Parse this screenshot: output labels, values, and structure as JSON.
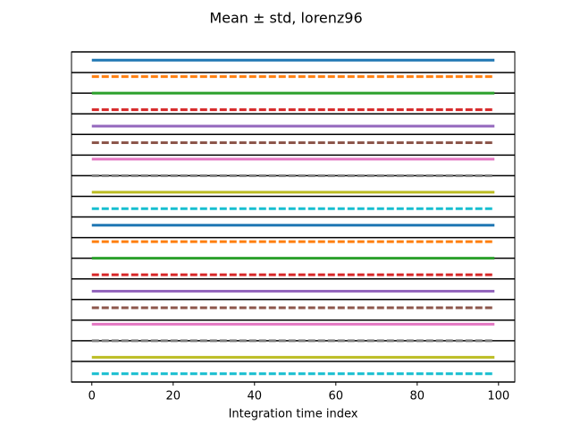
{
  "chart_data": {
    "type": "line",
    "title": "Mean ± std, lorenz96",
    "x_label": "Integration time index",
    "x": [
      0,
      99
    ],
    "xlim": [
      -5,
      104
    ],
    "xticks": [
      0,
      20,
      40,
      60,
      80,
      100
    ],
    "ylim": [
      0,
      40
    ],
    "series": [
      {
        "color": "#1f77b4",
        "values": [
          39,
          39
        ]
      },
      {
        "color": "#ff7f0e",
        "values": [
          37,
          37
        ]
      },
      {
        "color": "#2ca02c",
        "values": [
          35,
          35
        ]
      },
      {
        "color": "#d62728",
        "values": [
          33,
          33
        ]
      },
      {
        "color": "#9467bd",
        "values": [
          31,
          31
        ]
      },
      {
        "color": "#8c564b",
        "values": [
          29,
          29
        ]
      },
      {
        "color": "#e377c2",
        "values": [
          27,
          27
        ]
      },
      {
        "color": "#7f7f7f",
        "values": [
          25,
          25
        ]
      },
      {
        "color": "#bcbd22",
        "values": [
          23,
          23
        ]
      },
      {
        "color": "#17becf",
        "values": [
          21,
          21
        ]
      },
      {
        "color": "#1f77b4",
        "values": [
          19,
          19
        ]
      },
      {
        "color": "#ff7f0e",
        "values": [
          17,
          17
        ]
      },
      {
        "color": "#2ca02c",
        "values": [
          15,
          15
        ]
      },
      {
        "color": "#d62728",
        "values": [
          13,
          13
        ]
      },
      {
        "color": "#9467bd",
        "values": [
          11,
          11
        ]
      },
      {
        "color": "#8c564b",
        "values": [
          9,
          9
        ]
      },
      {
        "color": "#e377c2",
        "values": [
          7,
          7
        ]
      },
      {
        "color": "#7f7f7f",
        "values": [
          5,
          5
        ]
      },
      {
        "color": "#bcbd22",
        "values": [
          3,
          3
        ]
      },
      {
        "color": "#17becf",
        "values": [
          1,
          1
        ]
      }
    ]
  }
}
